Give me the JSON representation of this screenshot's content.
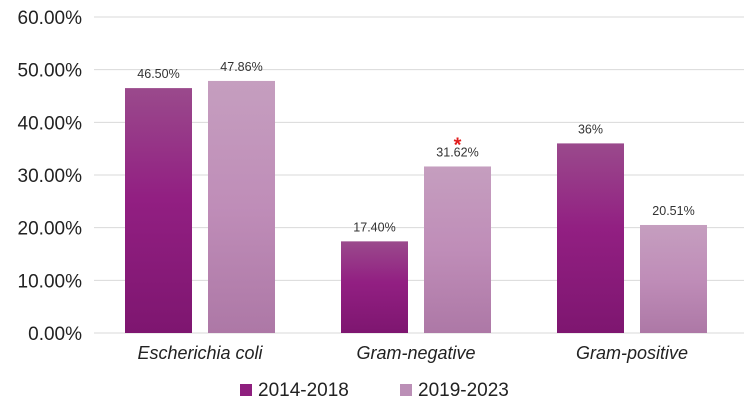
{
  "chart_data": {
    "type": "bar",
    "title": "",
    "xlabel": "",
    "ylabel": "",
    "ylim": [
      0,
      60
    ],
    "yticks": [
      0,
      10,
      20,
      30,
      40,
      50,
      60
    ],
    "ytick_labels": [
      "0.00%",
      "10.00%",
      "20.00%",
      "30.00%",
      "40.00%",
      "50.00%",
      "60.00%"
    ],
    "grid": true,
    "legend_position": "bottom",
    "categories": [
      "Escherichia coli",
      "Gram-negative",
      "Gram-positive"
    ],
    "series": [
      {
        "name": "2014-2018",
        "values": [
          46.5,
          17.4,
          36
        ],
        "labels": [
          "46.50%",
          "17.40%",
          "36%"
        ],
        "color": "#8e1f7e",
        "color_light": "#9a4a8c"
      },
      {
        "name": "2019-2023",
        "values": [
          47.86,
          31.62,
          20.51
        ],
        "labels": [
          "47.86%",
          "31.62%",
          "20.51%"
        ],
        "color": "#bb8fb6",
        "color_light": "#c7a1c1"
      }
    ],
    "annotations": [
      {
        "text": "*",
        "category_index": 1,
        "series_index": 1,
        "color": "#e11d1d"
      }
    ]
  }
}
